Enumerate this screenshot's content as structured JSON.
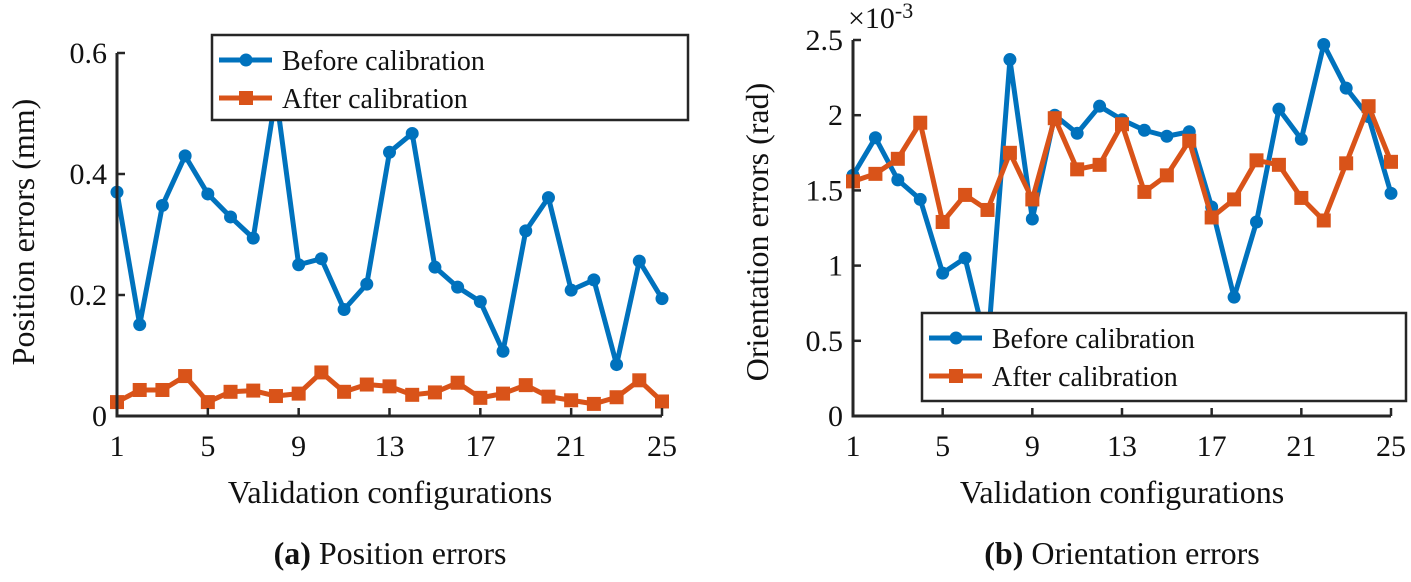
{
  "chart_data": [
    {
      "type": "line",
      "panel_label": "(a)",
      "caption": "Position errors",
      "xlabel": "Validation configurations",
      "ylabel": "Position errors (mm)",
      "x": [
        1,
        2,
        3,
        4,
        5,
        6,
        7,
        8,
        9,
        10,
        11,
        12,
        13,
        14,
        15,
        16,
        17,
        18,
        19,
        20,
        21,
        22,
        23,
        24,
        25
      ],
      "xticks": [
        "1",
        "5",
        "9",
        "13",
        "17",
        "21",
        "25"
      ],
      "xtick_values": [
        1,
        5,
        9,
        13,
        17,
        21,
        25
      ],
      "yticks": [
        "0",
        "0.2",
        "0.4",
        "0.6"
      ],
      "ytick_values": [
        0,
        0.2,
        0.4,
        0.6
      ],
      "xlim": [
        1,
        25
      ],
      "ylim": [
        0,
        0.6
      ],
      "grid": false,
      "legend_position": "top-right",
      "series": [
        {
          "name": "Before calibration",
          "color": "#0072BD",
          "marker": "circle",
          "values": [
            0.37,
            0.151,
            0.348,
            0.43,
            0.367,
            0.329,
            0.294,
            0.532,
            0.25,
            0.26,
            0.176,
            0.218,
            0.436,
            0.467,
            0.246,
            0.213,
            0.189,
            0.107,
            0.306,
            0.361,
            0.208,
            0.225,
            0.085,
            0.256,
            0.194
          ]
        },
        {
          "name": "After calibration",
          "color": "#D95319",
          "marker": "square",
          "values": [
            0.023,
            0.043,
            0.043,
            0.066,
            0.023,
            0.04,
            0.042,
            0.033,
            0.037,
            0.072,
            0.04,
            0.052,
            0.049,
            0.035,
            0.039,
            0.055,
            0.03,
            0.037,
            0.051,
            0.032,
            0.026,
            0.02,
            0.031,
            0.059,
            0.024
          ]
        }
      ]
    },
    {
      "type": "line",
      "panel_label": "(b)",
      "caption": "Orientation errors",
      "xlabel": "Validation configurations",
      "ylabel": "Orientation errors (rad)",
      "y_multiplier_base": "×10",
      "y_multiplier_exp": "-3",
      "x": [
        1,
        2,
        3,
        4,
        5,
        6,
        7,
        8,
        9,
        10,
        11,
        12,
        13,
        14,
        15,
        16,
        17,
        18,
        19,
        20,
        21,
        22,
        23,
        24,
        25
      ],
      "xticks": [
        "1",
        "5",
        "9",
        "13",
        "17",
        "21",
        "25"
      ],
      "xtick_values": [
        1,
        5,
        9,
        13,
        17,
        21,
        25
      ],
      "yticks": [
        "0",
        "0.5",
        "1",
        "1.5",
        "2",
        "2.5"
      ],
      "ytick_values": [
        0,
        0.5,
        1,
        1.5,
        2,
        2.5
      ],
      "xlim": [
        1,
        25
      ],
      "ylim": [
        0,
        2.5
      ],
      "grid": false,
      "legend_position": "bottom-right",
      "series": [
        {
          "name": "Before calibration",
          "color": "#0072BD",
          "marker": "circle",
          "values": [
            1.6,
            1.85,
            1.57,
            1.44,
            0.95,
            1.05,
            0.44,
            2.37,
            1.31,
            2.0,
            1.88,
            2.06,
            1.97,
            1.9,
            1.86,
            1.89,
            1.39,
            0.79,
            1.29,
            2.04,
            1.84,
            2.47,
            2.18,
            1.99,
            1.48
          ]
        },
        {
          "name": "After calibration",
          "color": "#D95319",
          "marker": "square",
          "values": [
            1.56,
            1.61,
            1.71,
            1.95,
            1.29,
            1.47,
            1.37,
            1.75,
            1.44,
            1.98,
            1.64,
            1.67,
            1.94,
            1.49,
            1.6,
            1.83,
            1.32,
            1.44,
            1.7,
            1.67,
            1.45,
            1.3,
            1.68,
            2.06,
            1.69
          ]
        }
      ]
    }
  ]
}
